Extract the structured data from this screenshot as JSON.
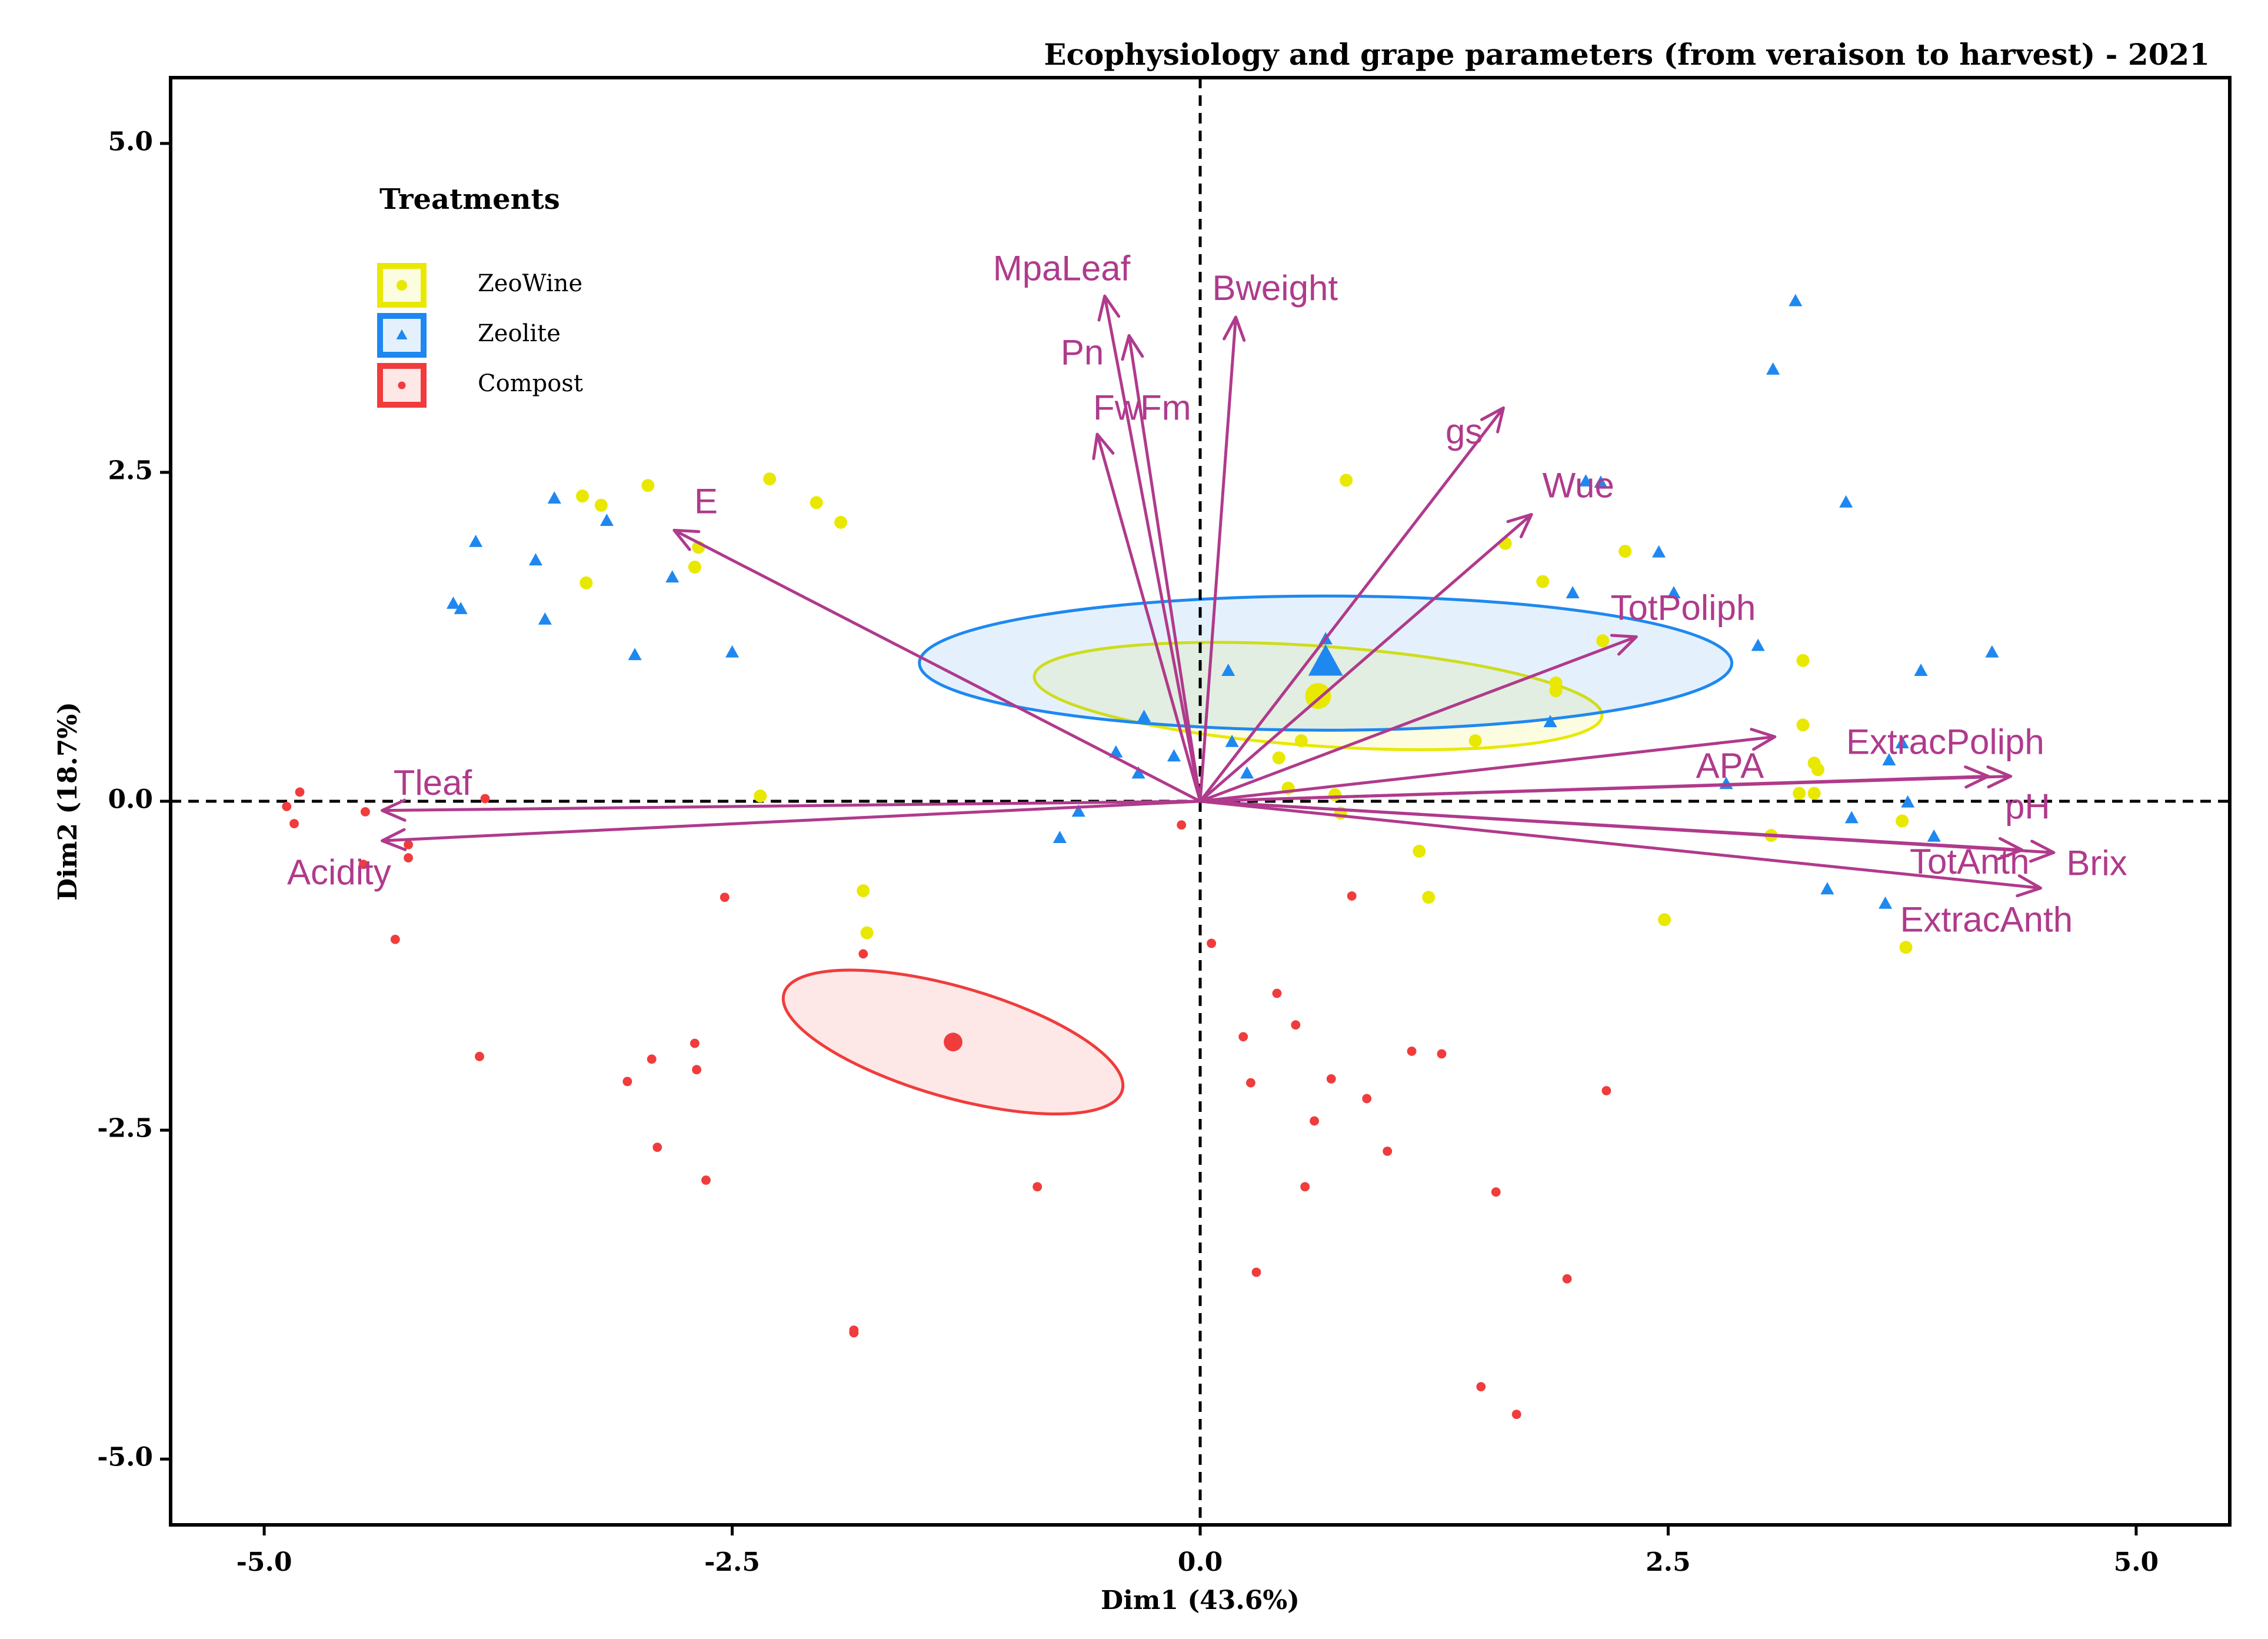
{
  "chart_data": {
    "type": "scatter",
    "subtype": "PCA biplot",
    "title": "Ecophysiology and grape parameters (from veraison to harvest) - 2021",
    "xlabel": "Dim1 (43.6%)",
    "ylabel": "Dim2 (18.7%)",
    "xlim": [
      -5.5,
      5.5
    ],
    "ylim": [
      -5.5,
      5.5
    ],
    "xticks": [
      -5.0,
      -2.5,
      0.0,
      2.5,
      5.0
    ],
    "yticks": [
      -5.0,
      -2.5,
      0.0,
      2.5,
      5.0
    ],
    "tick_labels": [
      "-5.0",
      "-2.5",
      "0.0",
      "2.5",
      "5.0"
    ],
    "grid": false,
    "legend_title": "Treatments",
    "legend_position": "top-left",
    "colors": {
      "ZeoWine": "#e8e800",
      "Zeolite": "#1e88f0",
      "Compost": "#f03c3c",
      "arrow": "#b03a8c"
    },
    "series": [
      {
        "name": "ZeoWine",
        "marker": "circle",
        "points": [
          [
            -3.3,
            2.32
          ],
          [
            -3.2,
            2.25
          ],
          [
            -2.95,
            2.4
          ],
          [
            -2.3,
            2.45
          ],
          [
            -2.05,
            2.27
          ],
          [
            -1.92,
            2.12
          ],
          [
            -3.28,
            1.66
          ],
          [
            -2.68,
            1.93
          ],
          [
            -2.7,
            1.78
          ],
          [
            -2.35,
            0.04
          ],
          [
            -1.8,
            -0.68
          ],
          [
            -1.78,
            -1.0
          ],
          [
            0.78,
            2.44
          ],
          [
            1.63,
            1.96
          ],
          [
            1.83,
            1.67
          ],
          [
            2.27,
            1.9
          ],
          [
            2.15,
            1.22
          ],
          [
            1.9,
            0.9
          ],
          [
            1.9,
            0.84
          ],
          [
            3.22,
            1.07
          ],
          [
            3.22,
            0.58
          ],
          [
            3.28,
            0.29
          ],
          [
            3.3,
            0.24
          ],
          [
            3.2,
            0.06
          ],
          [
            3.28,
            0.06
          ],
          [
            3.05,
            -0.26
          ],
          [
            3.75,
            -0.15
          ],
          [
            3.77,
            -1.11
          ],
          [
            1.17,
            -0.38
          ],
          [
            1.22,
            -0.73
          ],
          [
            2.48,
            -0.9
          ],
          [
            1.47,
            0.46
          ],
          [
            0.54,
            0.46
          ],
          [
            0.42,
            0.33
          ],
          [
            0.47,
            0.1
          ],
          [
            0.72,
            0.05
          ],
          [
            0.75,
            -0.09
          ]
        ],
        "centroid": [
          0.63,
          0.8
        ],
        "ellipse": {
          "center": [
            0.63,
            0.8
          ],
          "rx": 1.52,
          "ry": 0.38,
          "angle_deg": -4
        }
      },
      {
        "name": "Zeolite",
        "marker": "triangle",
        "points": [
          [
            -3.45,
            2.3
          ],
          [
            -3.17,
            2.13
          ],
          [
            -3.87,
            1.97
          ],
          [
            -3.55,
            1.83
          ],
          [
            -2.82,
            1.7
          ],
          [
            -3.99,
            1.5
          ],
          [
            -3.95,
            1.46
          ],
          [
            -3.5,
            1.38
          ],
          [
            -3.02,
            1.11
          ],
          [
            -2.5,
            1.13
          ],
          [
            -0.3,
            0.64
          ],
          [
            -0.45,
            0.37
          ],
          [
            -0.33,
            0.21
          ],
          [
            -0.14,
            0.34
          ],
          [
            -0.65,
            -0.08
          ],
          [
            -0.75,
            -0.28
          ],
          [
            0.15,
            0.99
          ],
          [
            0.17,
            0.45
          ],
          [
            0.25,
            0.21
          ],
          [
            0.67,
            1.23
          ],
          [
            1.99,
            1.58
          ],
          [
            2.06,
            2.43
          ],
          [
            2.14,
            2.42
          ],
          [
            2.45,
            1.89
          ],
          [
            2.53,
            1.58
          ],
          [
            2.98,
            1.18
          ],
          [
            1.87,
            0.6
          ],
          [
            3.06,
            3.28
          ],
          [
            3.18,
            3.8
          ],
          [
            3.45,
            2.27
          ],
          [
            3.75,
            0.44
          ],
          [
            3.68,
            0.31
          ],
          [
            3.85,
            0.99
          ],
          [
            4.23,
            1.13
          ],
          [
            3.48,
            -0.13
          ],
          [
            3.78,
            -0.01
          ],
          [
            3.92,
            -0.27
          ],
          [
            2.81,
            0.13
          ],
          [
            3.35,
            -0.67
          ],
          [
            3.66,
            -0.78
          ]
        ],
        "centroid": [
          0.67,
          1.05
        ],
        "ellipse": {
          "center": [
            0.67,
            1.05
          ],
          "rx": 2.17,
          "ry": 0.51,
          "angle_deg": 0
        }
      },
      {
        "name": "Compost",
        "marker": "dot",
        "points": [
          [
            -4.88,
            -0.04
          ],
          [
            -4.81,
            0.07
          ],
          [
            -4.84,
            -0.17
          ],
          [
            -4.46,
            -0.08
          ],
          [
            -4.47,
            -0.48
          ],
          [
            -4.23,
            -0.43
          ],
          [
            -4.3,
            -1.05
          ],
          [
            -4.23,
            -0.33
          ],
          [
            -3.82,
            0.02
          ],
          [
            -3.85,
            -1.94
          ],
          [
            -3.06,
            -2.13
          ],
          [
            -2.93,
            -1.96
          ],
          [
            -2.9,
            -2.63
          ],
          [
            -2.7,
            -1.84
          ],
          [
            -2.69,
            -2.04
          ],
          [
            -2.64,
            -2.88
          ],
          [
            -2.54,
            -0.73
          ],
          [
            -1.85,
            -4.02
          ],
          [
            -1.85,
            -4.04
          ],
          [
            -1.8,
            -1.16
          ],
          [
            -0.87,
            -2.93
          ],
          [
            -0.1,
            -0.18
          ],
          [
            0.06,
            -1.08
          ],
          [
            0.41,
            -1.46
          ],
          [
            0.23,
            -1.79
          ],
          [
            0.27,
            -2.14
          ],
          [
            0.3,
            -3.58
          ],
          [
            0.51,
            -1.7
          ],
          [
            0.56,
            -2.93
          ],
          [
            0.61,
            -2.43
          ],
          [
            0.7,
            -2.11
          ],
          [
            0.81,
            -0.72
          ],
          [
            0.89,
            -2.26
          ],
          [
            1.0,
            -2.66
          ],
          [
            1.13,
            -1.9
          ],
          [
            1.29,
            -1.92
          ],
          [
            1.5,
            -4.45
          ],
          [
            1.58,
            -2.97
          ],
          [
            1.69,
            -4.66
          ],
          [
            1.96,
            -3.63
          ],
          [
            2.17,
            -2.2
          ]
        ],
        "centroid": [
          -1.32,
          -1.83
        ],
        "ellipse": {
          "center": [
            -1.32,
            -1.83
          ],
          "rx": 0.94,
          "ry": 0.42,
          "angle_deg": -16
        }
      }
    ],
    "variables": [
      {
        "name": "MpaLeaf",
        "x": -0.51,
        "y": 3.84
      },
      {
        "name": "Pn",
        "x": -0.38,
        "y": 3.54
      },
      {
        "name": "FwFm",
        "x": -0.55,
        "y": 2.79
      },
      {
        "name": "Bweight",
        "x": 0.19,
        "y": 3.68
      },
      {
        "name": "gs",
        "x": 1.62,
        "y": 2.99
      },
      {
        "name": "Wue",
        "x": 1.77,
        "y": 2.18
      },
      {
        "name": "TotPoliph",
        "x": 2.33,
        "y": 1.25
      },
      {
        "name": "E",
        "x": -2.81,
        "y": 2.06
      },
      {
        "name": "Tleaf",
        "x": -4.37,
        "y": -0.07
      },
      {
        "name": "Acidity",
        "x": -4.37,
        "y": -0.3
      },
      {
        "name": "APA",
        "x": 3.07,
        "y": 0.49
      },
      {
        "name": "ExtracPoliph",
        "x": 4.21,
        "y": 0.19
      },
      {
        "name": "pH",
        "x": 4.33,
        "y": 0.19
      },
      {
        "name": "TotAnth",
        "x": 4.39,
        "y": -0.37
      },
      {
        "name": "Brix",
        "x": 4.56,
        "y": -0.39
      },
      {
        "name": "ExtracAnth",
        "x": 4.49,
        "y": -0.66
      }
    ],
    "variable_labels": [
      {
        "name": "MpaLeaf",
        "x": -0.74,
        "y": 4.03
      },
      {
        "name": "Pn",
        "x": -0.63,
        "y": 3.39
      },
      {
        "name": "FwFm",
        "x": -0.31,
        "y": 2.97
      },
      {
        "name": "Bweight",
        "x": 0.4,
        "y": 3.88
      },
      {
        "name": "gs",
        "x": 1.41,
        "y": 2.79
      },
      {
        "name": "Wue",
        "x": 2.02,
        "y": 2.38
      },
      {
        "name": "TotPoliph",
        "x": 2.58,
        "y": 1.45
      },
      {
        "name": "E",
        "x": -2.64,
        "y": 2.26
      },
      {
        "name": "Tleaf",
        "x": -4.1,
        "y": 0.12
      },
      {
        "name": "Acidity",
        "x": -4.6,
        "y": -0.56
      },
      {
        "name": "APA",
        "x": 2.83,
        "y": 0.25
      },
      {
        "name": "ExtracPoliph",
        "x": 3.98,
        "y": 0.43
      },
      {
        "name": "pH",
        "x": 4.42,
        "y": -0.06
      },
      {
        "name": "TotAnth",
        "x": 4.11,
        "y": -0.48
      },
      {
        "name": "Brix",
        "x": 4.79,
        "y": -0.49
      },
      {
        "name": "ExtracAnth",
        "x": 4.2,
        "y": -0.92
      }
    ]
  }
}
